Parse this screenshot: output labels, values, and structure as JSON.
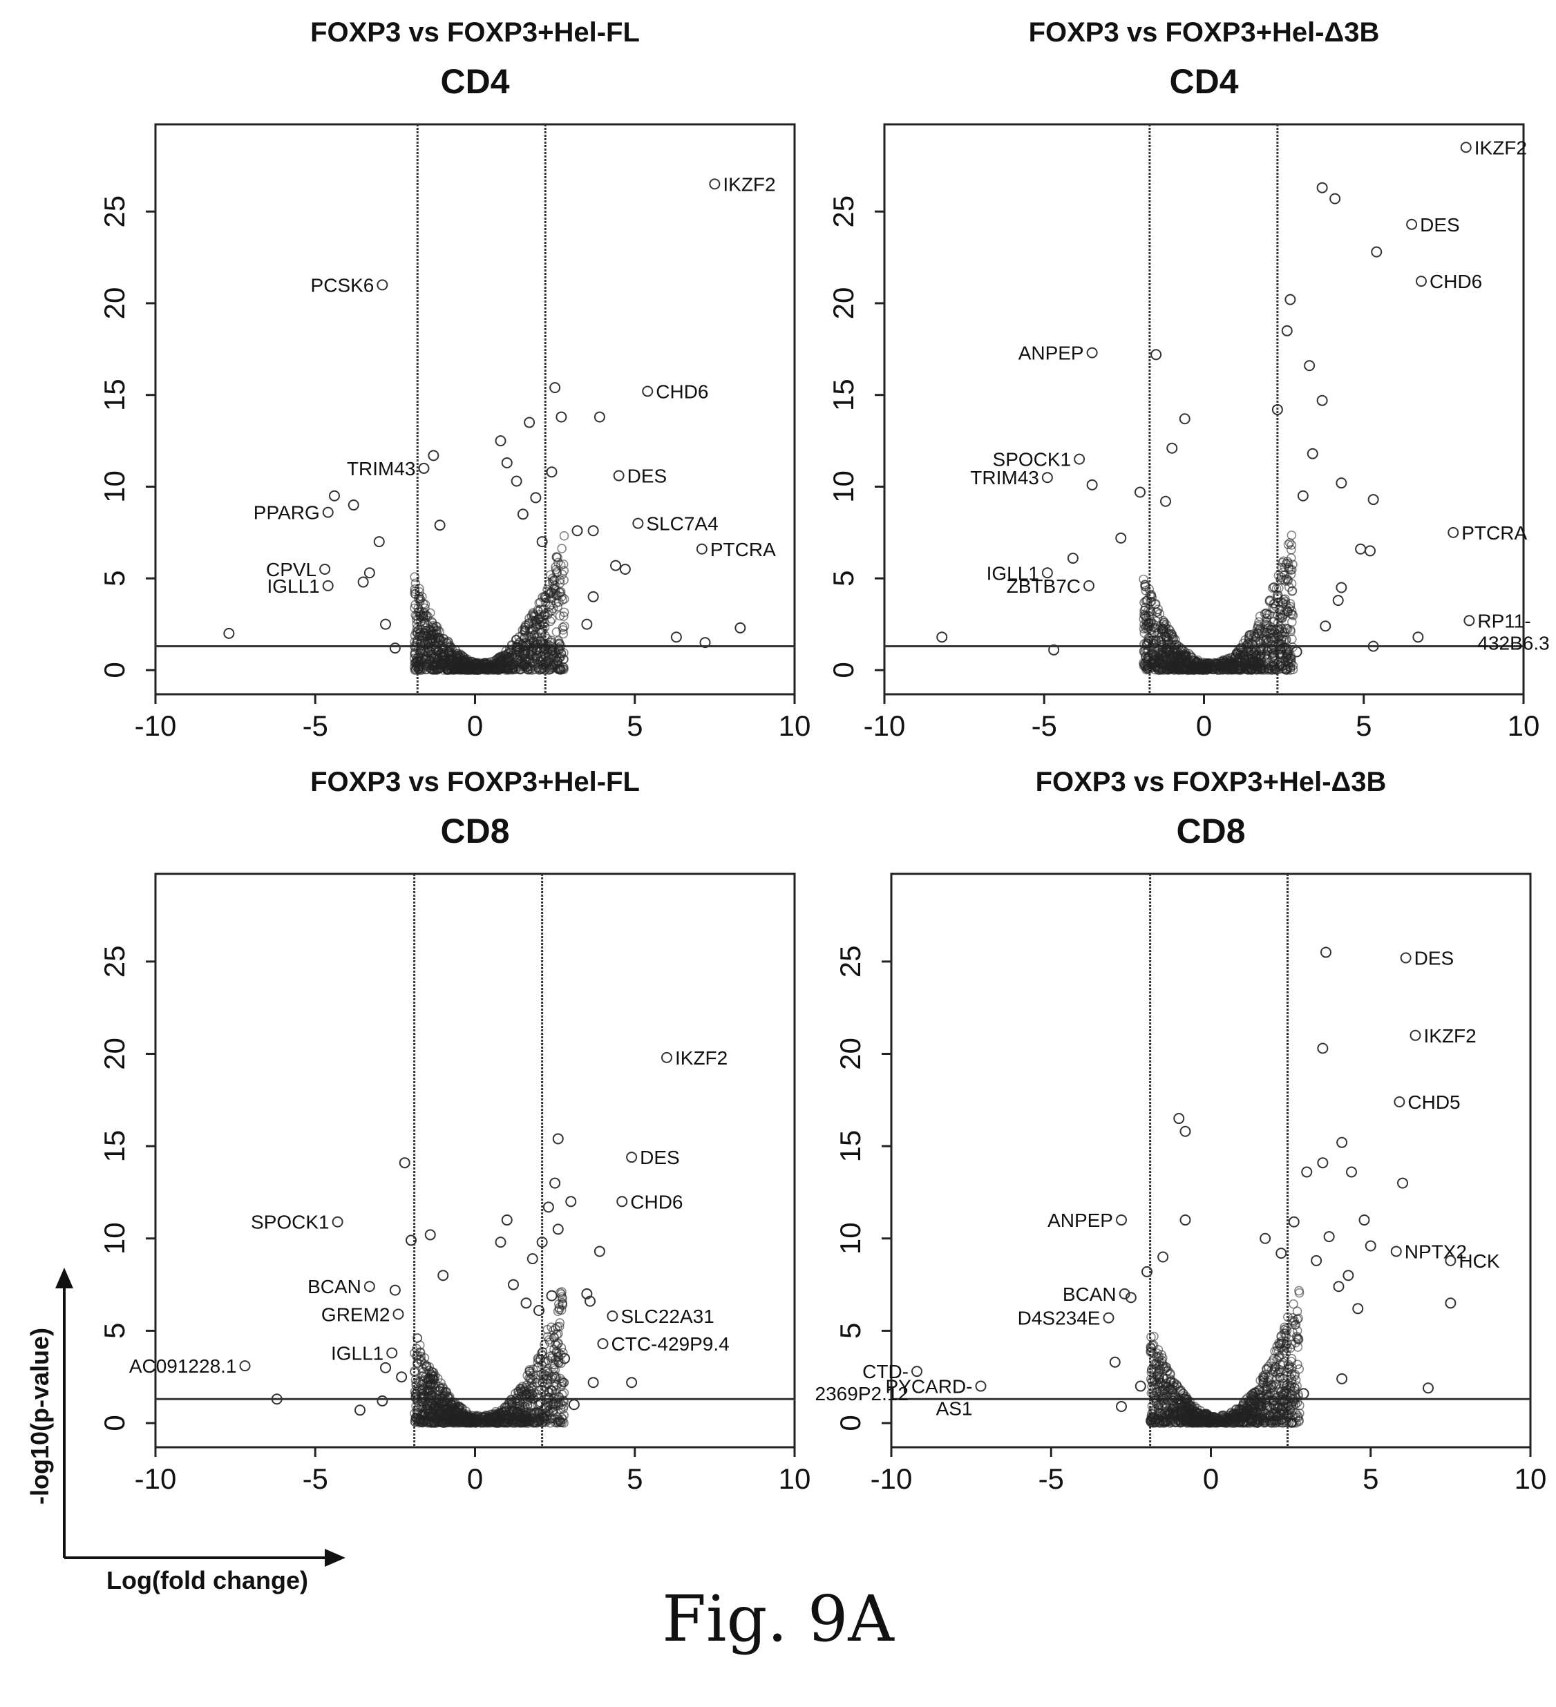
{
  "figure": {
    "caption": "Fig. 9A",
    "axis_hint": {
      "x_label": "Log(fold change)",
      "y_label": "-log10(p-value)"
    }
  },
  "chart_data": [
    {
      "type": "scatter",
      "title": "FOXP3 vs FOXP3+Hel-FL",
      "subtitle": "CD4",
      "xlim": [
        -10,
        10
      ],
      "ylim": [
        0,
        29
      ],
      "xticks": [
        -10,
        -5,
        0,
        5,
        10
      ],
      "yticks": [
        0,
        5,
        10,
        15,
        20,
        25
      ],
      "vlines": [
        -1.8,
        2.2
      ],
      "hline": 1.3,
      "labeled_points": [
        {
          "label": "IKZF2",
          "x": 7.5,
          "y": 26.5
        },
        {
          "label": "PCSK6",
          "x": -2.9,
          "y": 21
        },
        {
          "label": "CHD6",
          "x": 5.4,
          "y": 15.2
        },
        {
          "label": "TRIM43",
          "x": -1.6,
          "y": 11
        },
        {
          "label": "DES",
          "x": 4.5,
          "y": 10.6
        },
        {
          "label": "PPARG",
          "x": -4.6,
          "y": 8.6
        },
        {
          "label": "SLC7A4",
          "x": 5.1,
          "y": 8
        },
        {
          "label": "PTCRA",
          "x": 7.1,
          "y": 6.6
        },
        {
          "label": "CPVL",
          "x": -4.7,
          "y": 5.5
        },
        {
          "label": "IGLL1",
          "x": -4.6,
          "y": 4.6
        }
      ],
      "other_points": [
        [
          -7.7,
          2.0
        ],
        [
          -4.4,
          9.5
        ],
        [
          -3.8,
          9.0
        ],
        [
          -3.0,
          7.0
        ],
        [
          -3.5,
          4.8
        ],
        [
          -2.8,
          2.5
        ],
        [
          -2.5,
          1.2
        ],
        [
          -1.3,
          11.7
        ],
        [
          -1.1,
          7.9
        ],
        [
          -3.3,
          5.3
        ],
        [
          1.0,
          11.3
        ],
        [
          1.7,
          13.5
        ],
        [
          2.5,
          15.4
        ],
        [
          2.7,
          13.8
        ],
        [
          3.9,
          13.8
        ],
        [
          2.4,
          10.8
        ],
        [
          3.7,
          7.6
        ],
        [
          3.2,
          7.6
        ],
        [
          4.4,
          5.7
        ],
        [
          4.7,
          5.5
        ],
        [
          3.7,
          4.0
        ],
        [
          3.5,
          2.5
        ],
        [
          6.3,
          1.8
        ],
        [
          7.2,
          1.5
        ],
        [
          8.3,
          2.3
        ],
        [
          1.5,
          8.5
        ],
        [
          1.9,
          9.4
        ],
        [
          2.1,
          7.0
        ],
        [
          1.3,
          10.3
        ],
        [
          0.8,
          12.5
        ]
      ]
    },
    {
      "type": "scatter",
      "title": "FOXP3 vs FOXP3+Hel-Δ3B",
      "subtitle": "CD4",
      "xlim": [
        -10,
        10
      ],
      "ylim": [
        0,
        29
      ],
      "xticks": [
        -10,
        -5,
        0,
        5,
        10
      ],
      "yticks": [
        0,
        5,
        10,
        15,
        20,
        25
      ],
      "vlines": [
        -1.7,
        2.3
      ],
      "hline": 1.3,
      "labeled_points": [
        {
          "label": "IKZF2",
          "x": 8.2,
          "y": 28.5
        },
        {
          "label": "DES",
          "x": 6.5,
          "y": 24.3
        },
        {
          "label": "CHD6",
          "x": 6.8,
          "y": 21.2
        },
        {
          "label": "ANPEP",
          "x": -3.5,
          "y": 17.3
        },
        {
          "label": "TRIM43",
          "x": -4.9,
          "y": 10.5
        },
        {
          "label": "SPOCK1",
          "x": -3.9,
          "y": 11.5
        },
        {
          "label": "PTCRA",
          "x": 7.8,
          "y": 7.5
        },
        {
          "label": "IGLL1",
          "x": -4.9,
          "y": 5.3
        },
        {
          "label": "ZBTB7C",
          "x": -3.6,
          "y": 4.6
        },
        {
          "label": "RP11-\n432B6.3",
          "x": 8.3,
          "y": 2.7
        }
      ],
      "other_points": [
        [
          3.7,
          26.3
        ],
        [
          4.1,
          25.7
        ],
        [
          5.4,
          22.8
        ],
        [
          2.7,
          20.2
        ],
        [
          2.6,
          18.5
        ],
        [
          3.3,
          16.6
        ],
        [
          2.3,
          14.2
        ],
        [
          3.7,
          14.7
        ],
        [
          -8.2,
          1.8
        ],
        [
          -4.7,
          1.1
        ],
        [
          -4.1,
          6.1
        ],
        [
          -3.5,
          10.1
        ],
        [
          -2.0,
          9.7
        ],
        [
          -0.6,
          13.7
        ],
        [
          -1.0,
          12.1
        ],
        [
          -1.5,
          17.2
        ],
        [
          5.3,
          9.3
        ],
        [
          4.9,
          6.6
        ],
        [
          5.2,
          6.5
        ],
        [
          4.3,
          4.5
        ],
        [
          4.2,
          3.8
        ],
        [
          3.8,
          2.4
        ],
        [
          6.7,
          1.8
        ],
        [
          5.3,
          1.3
        ],
        [
          2.9,
          1.0
        ],
        [
          3.1,
          9.5
        ],
        [
          4.3,
          10.2
        ],
        [
          3.4,
          11.8
        ],
        [
          -2.6,
          7.2
        ],
        [
          -1.2,
          9.2
        ]
      ]
    },
    {
      "type": "scatter",
      "title": "FOXP3 vs FOXP3+Hel-FL",
      "subtitle": "CD8",
      "xlim": [
        -10,
        10
      ],
      "ylim": [
        0,
        29
      ],
      "xticks": [
        -10,
        -5,
        0,
        5,
        10
      ],
      "yticks": [
        0,
        5,
        10,
        15,
        20,
        25
      ],
      "vlines": [
        -1.9,
        2.1
      ],
      "hline": 1.3,
      "labeled_points": [
        {
          "label": "IKZF2",
          "x": 6.0,
          "y": 19.8
        },
        {
          "label": "DES",
          "x": 4.9,
          "y": 14.4
        },
        {
          "label": "CHD6",
          "x": 4.6,
          "y": 12.0
        },
        {
          "label": "SPOCK1",
          "x": -4.3,
          "y": 10.9
        },
        {
          "label": "BCAN",
          "x": -3.3,
          "y": 7.4
        },
        {
          "label": "GREM2",
          "x": -2.4,
          "y": 5.9
        },
        {
          "label": "SLC22A31",
          "x": 4.3,
          "y": 5.8
        },
        {
          "label": "IGLL1",
          "x": -2.6,
          "y": 3.8
        },
        {
          "label": "CTC-429P9.4",
          "x": 4.0,
          "y": 4.3
        },
        {
          "label": "AC091228.1",
          "x": -7.2,
          "y": 3.1
        }
      ],
      "other_points": [
        [
          2.6,
          15.4
        ],
        [
          -2.2,
          14.1
        ],
        [
          2.5,
          13.0
        ],
        [
          3.0,
          12.0
        ],
        [
          2.3,
          11.7
        ],
        [
          1.0,
          11.0
        ],
        [
          2.6,
          10.5
        ],
        [
          3.9,
          9.3
        ],
        [
          -2.0,
          9.9
        ],
        [
          -1.4,
          10.2
        ],
        [
          -2.5,
          7.2
        ],
        [
          3.5,
          7.0
        ],
        [
          3.6,
          6.6
        ],
        [
          2.1,
          9.8
        ],
        [
          1.8,
          8.9
        ],
        [
          -2.9,
          1.2
        ],
        [
          -3.6,
          0.7
        ],
        [
          -6.2,
          1.3
        ],
        [
          4.9,
          2.2
        ],
        [
          3.1,
          1.0
        ],
        [
          2.4,
          6.9
        ],
        [
          2.0,
          6.1
        ],
        [
          -2.8,
          3.0
        ],
        [
          -1.0,
          8.0
        ],
        [
          1.2,
          7.5
        ],
        [
          0.8,
          9.8
        ],
        [
          3.7,
          2.2
        ],
        [
          2.8,
          3.5
        ],
        [
          -2.3,
          2.5
        ],
        [
          1.6,
          6.5
        ]
      ]
    },
    {
      "type": "scatter",
      "title": "FOXP3 vs FOXP3+Hel-Δ3B",
      "subtitle": "CD8",
      "xlim": [
        -10,
        10
      ],
      "ylim": [
        0,
        29
      ],
      "xticks": [
        -10,
        -5,
        0,
        5,
        10
      ],
      "yticks": [
        0,
        5,
        10,
        15,
        20,
        25
      ],
      "vlines": [
        -1.9,
        2.4
      ],
      "hline": 1.3,
      "labeled_points": [
        {
          "label": "DES",
          "x": 6.1,
          "y": 25.2
        },
        {
          "label": "IKZF2",
          "x": 6.4,
          "y": 21.0
        },
        {
          "label": "CHD5",
          "x": 5.9,
          "y": 17.4
        },
        {
          "label": "ANPEP",
          "x": -2.8,
          "y": 11.0
        },
        {
          "label": "NPTX2",
          "x": 5.8,
          "y": 9.3
        },
        {
          "label": "HCK",
          "x": 7.5,
          "y": 8.8
        },
        {
          "label": "BCAN",
          "x": -2.7,
          "y": 7.0
        },
        {
          "label": "D4S234E",
          "x": -3.2,
          "y": 5.7
        },
        {
          "label": "CTD-\n2369P2.12",
          "x": -9.2,
          "y": 2.8
        },
        {
          "label": "PYCARD-\nAS1",
          "x": -7.2,
          "y": 2.0
        }
      ],
      "other_points": [
        [
          3.6,
          25.5
        ],
        [
          3.5,
          20.3
        ],
        [
          -0.8,
          15.8
        ],
        [
          -1.0,
          16.5
        ],
        [
          3.0,
          13.6
        ],
        [
          3.5,
          14.1
        ],
        [
          4.4,
          13.6
        ],
        [
          4.1,
          15.2
        ],
        [
          3.7,
          10.1
        ],
        [
          2.6,
          10.9
        ],
        [
          4.8,
          11.0
        ],
        [
          6.0,
          13.0
        ],
        [
          5.0,
          9.6
        ],
        [
          4.3,
          8.0
        ],
        [
          4.0,
          7.4
        ],
        [
          7.5,
          6.5
        ],
        [
          4.6,
          6.2
        ],
        [
          4.1,
          2.4
        ],
        [
          6.8,
          1.9
        ],
        [
          2.9,
          1.6
        ],
        [
          -2.0,
          8.2
        ],
        [
          -1.5,
          9.0
        ],
        [
          -0.8,
          11.0
        ],
        [
          -2.5,
          6.8
        ],
        [
          -3.0,
          3.3
        ],
        [
          -2.8,
          0.9
        ],
        [
          -2.2,
          2.0
        ],
        [
          3.3,
          8.8
        ],
        [
          1.7,
          10.0
        ],
        [
          2.2,
          9.2
        ]
      ]
    }
  ]
}
